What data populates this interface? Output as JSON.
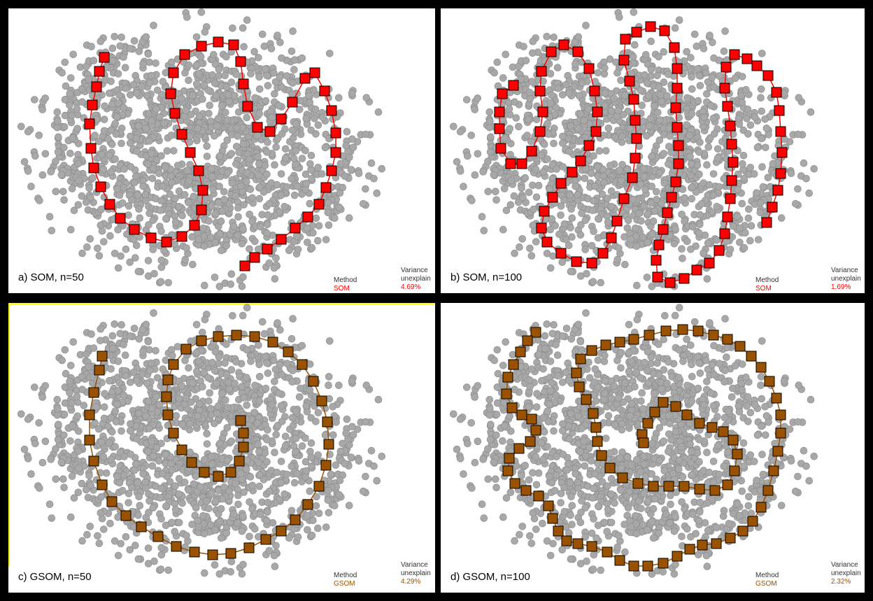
{
  "colors": {
    "background": "#ffffff",
    "border": "#000000",
    "data_point": "#a8a8a8",
    "data_point_stroke": "#8a8a8a",
    "som": "#ff0000",
    "gsom": "#9a5200",
    "highlight": "#ffff00"
  },
  "panels": [
    {
      "id": "a",
      "caption": "a)  SOM, n=50",
      "method_label": "Method",
      "method_value": "SOM",
      "variance_label_1": "Variance",
      "variance_label_2": "unexplain",
      "variance_value": "4.69%",
      "accent": "som",
      "nodes": 50
    },
    {
      "id": "b",
      "caption": "b) SOM, n=100",
      "method_label": "Method",
      "method_value": "SOM",
      "variance_label_1": "Variance",
      "variance_label_2": "unexplain",
      "variance_value": "1.69%",
      "accent": "som",
      "nodes": 100
    },
    {
      "id": "c",
      "caption": "c) GSOM, n=50",
      "method_label": "Method",
      "method_value": "GSOM",
      "variance_label_1": "Variance",
      "variance_label_2": "unexplain",
      "variance_value": "4.29%",
      "accent": "gsom",
      "nodes": 50
    },
    {
      "id": "d",
      "caption": "d) GSOM, n=100",
      "method_label": "Method",
      "method_value": "GSOM",
      "variance_label_1": "Variance",
      "variance_label_2": "unexplain",
      "variance_value": "2.32%",
      "accent": "gsom",
      "nodes": 100
    }
  ]
}
